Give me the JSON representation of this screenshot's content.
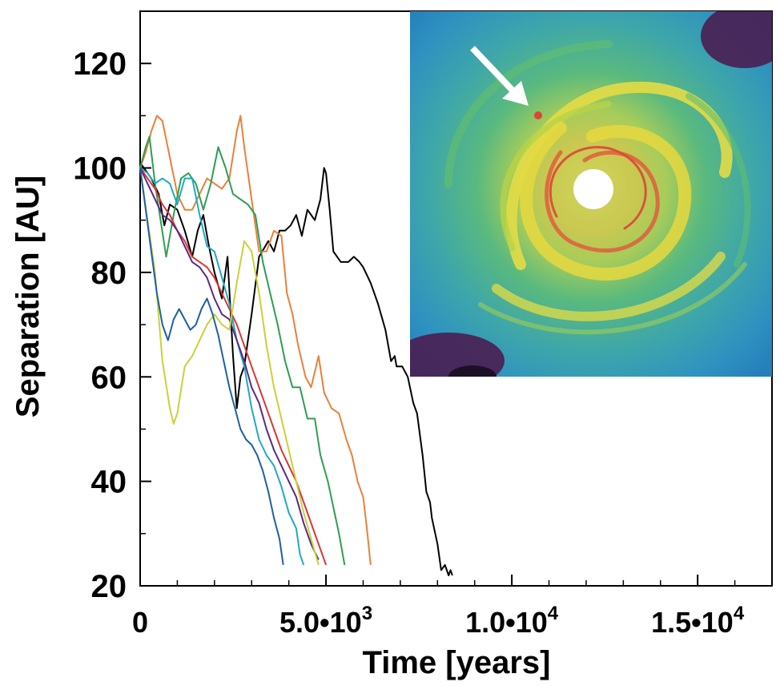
{
  "chart_data": {
    "type": "line",
    "title": "",
    "xlabel": "Time [years]",
    "ylabel": "Separation [AU]",
    "xlim": [
      0,
      17000
    ],
    "ylim": [
      20,
      130
    ],
    "x_ticks": [
      0,
      5000,
      10000,
      15000
    ],
    "x_tick_labels": [
      {
        "mantissa": "0",
        "exponent": ""
      },
      {
        "mantissa": "5.0•10",
        "exponent": "3"
      },
      {
        "mantissa": "1.0•10",
        "exponent": "4"
      },
      {
        "mantissa": "1.5•10",
        "exponent": "4"
      }
    ],
    "y_ticks": [
      20,
      40,
      60,
      80,
      100,
      120
    ],
    "y_tick_labels": [
      "20",
      "40",
      "60",
      "80",
      "100",
      "120"
    ],
    "series": [
      {
        "name": "black",
        "color": "#000000",
        "x": [
          0,
          300,
          500,
          650,
          800,
          1000,
          1200,
          1400,
          1550,
          1700,
          1850,
          2000,
          2200,
          2350,
          2500,
          2600,
          2700,
          2800,
          3000,
          3200,
          3450,
          3600,
          3750,
          3900,
          4050,
          4200,
          4350,
          4500,
          4700,
          4850,
          4950,
          5000,
          5100,
          5200,
          5400,
          5600,
          5750,
          5900,
          6000,
          6200,
          6400,
          6600,
          6750,
          6850,
          6900,
          7050,
          7200,
          7350,
          7450,
          7600,
          7700,
          7800,
          7850,
          8000,
          8100,
          8200,
          8300,
          8350,
          8400
        ],
        "y": [
          101,
          98,
          95,
          89,
          93,
          92,
          88,
          83,
          88,
          91,
          85,
          80,
          75,
          83,
          64,
          54,
          60,
          62,
          72,
          83,
          86,
          84,
          88,
          88,
          89,
          91,
          87,
          92,
          90,
          94,
          100,
          99,
          92,
          84,
          82,
          82,
          83,
          82,
          81,
          78,
          74,
          69,
          63,
          64,
          62,
          62,
          60,
          55,
          53,
          45,
          38,
          36,
          33,
          28,
          23,
          24,
          22,
          23,
          22
        ]
      },
      {
        "name": "orange",
        "color": "#e8813a",
        "x": [
          0,
          150,
          300,
          450,
          600,
          800,
          1000,
          1200,
          1400,
          1600,
          1800,
          2000,
          2200,
          2400,
          2600,
          2700,
          2800,
          3000,
          3200,
          3400,
          3600,
          3800,
          3950,
          4100,
          4250,
          4450,
          4600,
          4800,
          4950,
          5150,
          5350,
          5550,
          5700,
          5850,
          6000,
          6100,
          6200
        ],
        "y": [
          100,
          103,
          107,
          110,
          109,
          102,
          95,
          92,
          92,
          95,
          98,
          97,
          96,
          98,
          107,
          110,
          104,
          94,
          84,
          84,
          88,
          87,
          76,
          72,
          66,
          60,
          58,
          64,
          57,
          54,
          53,
          48,
          45,
          40,
          37,
          31,
          24
        ]
      },
      {
        "name": "green",
        "color": "#2e9e52",
        "x": [
          0,
          150,
          250,
          400,
          550,
          700,
          900,
          1100,
          1300,
          1500,
          1700,
          1900,
          2100,
          2300,
          2500,
          2700,
          2900,
          3100,
          3300,
          3500,
          3700,
          3900,
          4100,
          4300,
          4500,
          4700,
          4850,
          5050,
          5200,
          5350,
          5500
        ],
        "y": [
          100,
          104,
          106,
          97,
          90,
          83,
          91,
          98,
          99,
          97,
          92,
          97,
          104,
          100,
          95,
          94,
          93,
          91,
          82,
          76,
          70,
          63,
          58,
          58,
          52,
          52,
          45,
          40,
          35,
          30,
          24
        ]
      },
      {
        "name": "teal",
        "color": "#21a8c4",
        "x": [
          0,
          200,
          400,
          600,
          800,
          1000,
          1200,
          1400,
          1600,
          1800,
          2000,
          2200,
          2400,
          2600,
          2800,
          3000,
          3200,
          3400,
          3600,
          3800,
          4000,
          4200,
          4300,
          4400
        ],
        "y": [
          100,
          99,
          97,
          98,
          97,
          93,
          98,
          98,
          91,
          85,
          84,
          79,
          74,
          67,
          62,
          54,
          48,
          45,
          43,
          39,
          34,
          31,
          26,
          24
        ]
      },
      {
        "name": "red",
        "color": "#d93636",
        "x": [
          0,
          200,
          400,
          600,
          800,
          1000,
          1200,
          1400,
          1600,
          1800,
          2000,
          2200,
          2400,
          2600,
          2800,
          3000,
          3200,
          3400,
          3600,
          3800,
          4000,
          4200,
          4400,
          4600,
          4800,
          5000
        ],
        "y": [
          100,
          98,
          96,
          93,
          91,
          88,
          86,
          83,
          82,
          81,
          79,
          76,
          73,
          70,
          66,
          62,
          58,
          54,
          50,
          46,
          43,
          40,
          36,
          32,
          28,
          24
        ]
      },
      {
        "name": "purple",
        "color": "#5a2a82",
        "x": [
          0,
          200,
          400,
          600,
          800,
          1000,
          1200,
          1400,
          1600,
          1800,
          2000,
          2200,
          2400,
          2600,
          2800,
          3000,
          3200,
          3400,
          3600,
          3800,
          4000,
          4200,
          4400,
          4600,
          4800
        ],
        "y": [
          100,
          97,
          94,
          91,
          90,
          88,
          85,
          82,
          81,
          79,
          75,
          72,
          71,
          67,
          63,
          58,
          55,
          50,
          46,
          43,
          40,
          37,
          32,
          28,
          25
        ]
      },
      {
        "name": "yellow",
        "color": "#c9d13a",
        "x": [
          0,
          200,
          400,
          600,
          800,
          900,
          1000,
          1200,
          1400,
          1600,
          1800,
          2000,
          2200,
          2400,
          2600,
          2800,
          3000,
          3200,
          3400,
          3600,
          3800,
          4000,
          4200,
          4400,
          4600,
          4800
        ],
        "y": [
          100,
          90,
          80,
          63,
          54,
          51,
          53,
          62,
          64,
          67,
          70,
          72,
          70,
          69,
          78,
          86,
          84,
          76,
          66,
          58,
          52,
          46,
          40,
          34,
          29,
          24
        ]
      },
      {
        "name": "blue",
        "color": "#1f5fa0",
        "x": [
          0,
          150,
          300,
          450,
          600,
          750,
          900,
          1050,
          1200,
          1350,
          1500,
          1650,
          1800,
          1950,
          2100,
          2250,
          2400,
          2550,
          2700,
          2850,
          3000,
          3150,
          3300,
          3450,
          3600,
          3750,
          3850
        ],
        "y": [
          100,
          92,
          84,
          76,
          70,
          67,
          71,
          73,
          71,
          69,
          70,
          73,
          75,
          72,
          68,
          63,
          58,
          54,
          50,
          48,
          47,
          45,
          42,
          38,
          33,
          29,
          24
        ]
      }
    ]
  },
  "inset": {
    "description_label": "",
    "arrow_color": "#ffffff",
    "colors": {
      "background": "#3a9fc4",
      "mid": "#4fb879",
      "high": "#e8df4a",
      "peak": "#d9473a",
      "dark": "#4a1e52"
    }
  }
}
